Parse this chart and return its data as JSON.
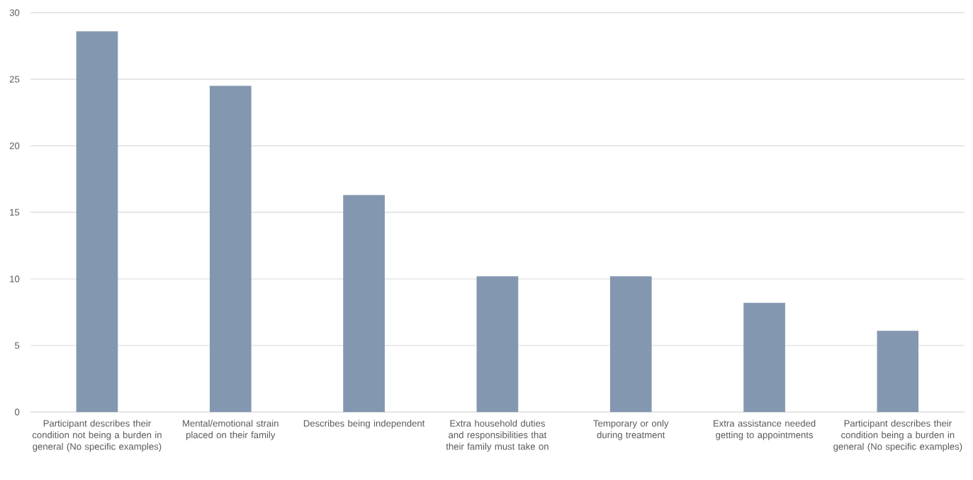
{
  "chart_data": {
    "type": "bar",
    "categories": [
      "Participant describes their condition not being a burden in general (No specific examples)",
      "Mental/emotional strain placed on their family",
      "Describes being independent",
      "Extra household duties and responsibilities that their family must take on",
      "Temporary or only during treatment",
      "Extra assistance needed getting to appointments",
      "Participant describes their condition being a burden in general (No specific examples)"
    ],
    "values": [
      28.6,
      24.5,
      16.3,
      10.2,
      10.2,
      8.2,
      6.1
    ],
    "color": "#8497b0",
    "ylim": [
      0,
      30
    ],
    "yticks": [
      0,
      5,
      10,
      15,
      20,
      25,
      30
    ],
    "grid": "y"
  }
}
